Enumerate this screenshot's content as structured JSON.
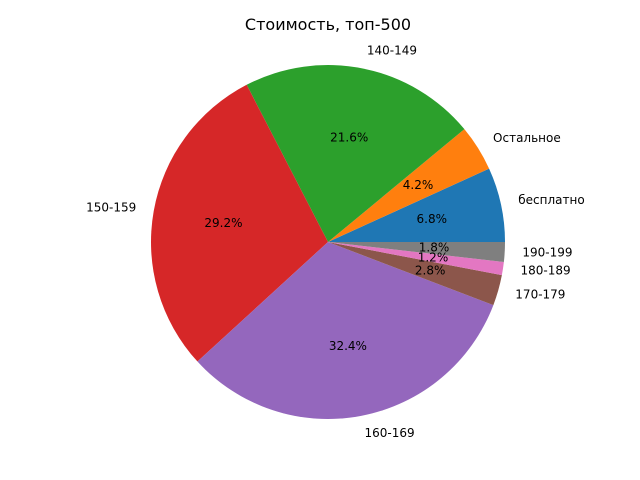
{
  "chart_data": {
    "type": "pie",
    "title": "Стоимость, топ-500",
    "slices": [
      {
        "label": "бесплатно",
        "value": 6.8,
        "pct_label": "6.8%",
        "color": "#1f77b4"
      },
      {
        "label": "Остальное",
        "value": 4.2,
        "pct_label": "4.2%",
        "color": "#ff7f0e"
      },
      {
        "label": "140-149",
        "value": 21.6,
        "pct_label": "21.6%",
        "color": "#2ca02c"
      },
      {
        "label": "150-159",
        "value": 29.2,
        "pct_label": "29.2%",
        "color": "#d62728"
      },
      {
        "label": "160-169",
        "value": 32.4,
        "pct_label": "32.4%",
        "color": "#9467bd"
      },
      {
        "label": "170-179",
        "value": 2.8,
        "pct_label": "2.8%",
        "color": "#8c564b"
      },
      {
        "label": "180-189",
        "value": 1.2,
        "pct_label": "1.2%",
        "color": "#e377c2"
      },
      {
        "label": "190-199",
        "value": 1.8,
        "pct_label": "1.8%",
        "color": "#7f7f7f"
      }
    ]
  }
}
